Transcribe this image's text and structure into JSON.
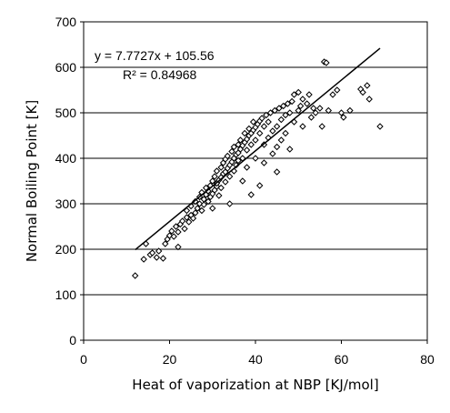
{
  "chart_data": {
    "type": "scatter",
    "title": "",
    "xlabel": "Heat of vaporization at NBP [KJ/mol]",
    "ylabel": "Normal Boiling Point [K]",
    "xlim": [
      0,
      80
    ],
    "ylim": [
      0,
      700
    ],
    "xticks": [
      "0",
      "20",
      "40",
      "60",
      "80"
    ],
    "yticks": [
      "0",
      "100",
      "200",
      "300",
      "400",
      "500",
      "600",
      "700"
    ],
    "grid": "horizontal",
    "marker": "diamond",
    "trendline": {
      "type": "linear",
      "slope": 7.7727,
      "intercept": 105.56,
      "x_range": [
        12,
        69
      ],
      "equation_label": "y = 7.7727x + 105.56",
      "r2_label": "R² = 0.84968"
    },
    "points": [
      [
        12,
        142
      ],
      [
        14,
        178
      ],
      [
        14.5,
        212
      ],
      [
        15.5,
        188
      ],
      [
        16,
        192
      ],
      [
        17,
        182
      ],
      [
        17.5,
        196
      ],
      [
        18.5,
        180
      ],
      [
        19,
        212
      ],
      [
        19.5,
        222
      ],
      [
        20,
        230
      ],
      [
        20.5,
        240
      ],
      [
        21,
        228
      ],
      [
        21.5,
        250
      ],
      [
        22,
        205
      ],
      [
        22,
        238
      ],
      [
        22.5,
        255
      ],
      [
        23,
        262
      ],
      [
        23.5,
        245
      ],
      [
        24,
        270
      ],
      [
        24,
        285
      ],
      [
        24.5,
        260
      ],
      [
        25,
        275
      ],
      [
        25,
        295
      ],
      [
        25.5,
        268
      ],
      [
        26,
        280
      ],
      [
        26,
        305
      ],
      [
        26.5,
        290
      ],
      [
        27,
        300
      ],
      [
        27,
        315
      ],
      [
        27.5,
        285
      ],
      [
        27.5,
        325
      ],
      [
        28,
        298
      ],
      [
        28,
        310
      ],
      [
        28.5,
        320
      ],
      [
        28.5,
        335
      ],
      [
        29,
        305
      ],
      [
        29,
        328
      ],
      [
        29.5,
        340
      ],
      [
        29.5,
        315
      ],
      [
        30,
        322
      ],
      [
        30,
        350
      ],
      [
        30,
        290
      ],
      [
        30.5,
        330
      ],
      [
        30.5,
        360
      ],
      [
        31,
        338
      ],
      [
        31,
        345
      ],
      [
        31,
        372
      ],
      [
        31.5,
        352
      ],
      [
        31.5,
        318
      ],
      [
        32,
        358
      ],
      [
        32,
        380
      ],
      [
        32,
        335
      ],
      [
        32.5,
        366
      ],
      [
        32.5,
        390
      ],
      [
        33,
        370
      ],
      [
        33,
        348
      ],
      [
        33,
        398
      ],
      [
        33.5,
        378
      ],
      [
        33.5,
        405
      ],
      [
        34,
        385
      ],
      [
        34,
        360
      ],
      [
        34,
        300
      ],
      [
        34.5,
        392
      ],
      [
        34.5,
        415
      ],
      [
        35,
        400
      ],
      [
        35,
        372
      ],
      [
        35,
        425
      ],
      [
        35.5,
        408
      ],
      [
        35.5,
        385
      ],
      [
        36,
        412
      ],
      [
        36,
        430
      ],
      [
        36,
        395
      ],
      [
        36.5,
        420
      ],
      [
        36.5,
        440
      ],
      [
        37,
        428
      ],
      [
        37,
        400
      ],
      [
        37,
        350
      ],
      [
        37.5,
        435
      ],
      [
        37.5,
        455
      ],
      [
        38,
        442
      ],
      [
        38,
        418
      ],
      [
        38,
        380
      ],
      [
        38.5,
        450
      ],
      [
        38.5,
        465
      ],
      [
        39,
        455
      ],
      [
        39,
        430
      ],
      [
        39,
        320
      ],
      [
        39.5,
        462
      ],
      [
        39.5,
        480
      ],
      [
        40,
        468
      ],
      [
        40,
        440
      ],
      [
        40,
        400
      ],
      [
        40.5,
        475
      ],
      [
        41,
        482
      ],
      [
        41,
        455
      ],
      [
        41,
        340
      ],
      [
        41.5,
        488
      ],
      [
        42,
        470
      ],
      [
        42,
        430
      ],
      [
        42,
        390
      ],
      [
        42.5,
        495
      ],
      [
        43,
        480
      ],
      [
        43,
        445
      ],
      [
        43.5,
        500
      ],
      [
        44,
        460
      ],
      [
        44,
        410
      ],
      [
        44.5,
        505
      ],
      [
        45,
        470
      ],
      [
        45,
        425
      ],
      [
        45,
        370
      ],
      [
        45.5,
        510
      ],
      [
        46,
        485
      ],
      [
        46,
        440
      ],
      [
        46.5,
        515
      ],
      [
        47,
        495
      ],
      [
        47,
        455
      ],
      [
        47.5,
        520
      ],
      [
        48,
        500
      ],
      [
        48,
        420
      ],
      [
        48.5,
        525
      ],
      [
        49,
        540
      ],
      [
        49,
        480
      ],
      [
        50,
        545
      ],
      [
        50,
        505
      ],
      [
        50.5,
        515
      ],
      [
        51,
        530
      ],
      [
        51,
        470
      ],
      [
        52,
        520
      ],
      [
        52.5,
        540
      ],
      [
        53,
        490
      ],
      [
        53.5,
        510
      ],
      [
        54,
        500
      ],
      [
        55,
        510
      ],
      [
        55.5,
        470
      ],
      [
        56,
        612
      ],
      [
        56.5,
        610
      ],
      [
        57,
        505
      ],
      [
        58,
        540
      ],
      [
        59,
        550
      ],
      [
        60,
        500
      ],
      [
        60.5,
        490
      ],
      [
        62,
        505
      ],
      [
        64.5,
        552
      ],
      [
        65,
        545
      ],
      [
        66,
        560
      ],
      [
        66.5,
        530
      ],
      [
        69,
        470
      ]
    ]
  }
}
